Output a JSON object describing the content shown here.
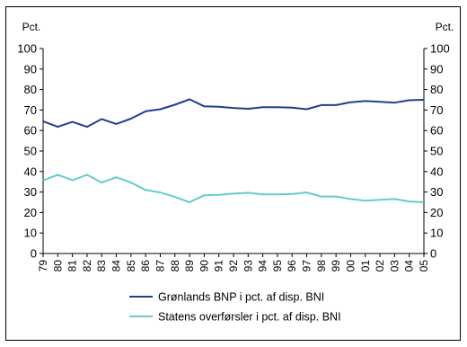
{
  "chart_data": {
    "type": "line",
    "title": "",
    "xlabel": "",
    "ylabel_left": "Pct.",
    "ylabel_right": "Pct.",
    "ylim": [
      0,
      100
    ],
    "yticks": [
      0,
      10,
      20,
      30,
      40,
      50,
      60,
      70,
      80,
      90,
      100
    ],
    "grid": false,
    "legend_position": "bottom",
    "categories": [
      "79",
      "80",
      "81",
      "82",
      "83",
      "84",
      "85",
      "86",
      "87",
      "88",
      "89",
      "90",
      "91",
      "92",
      "93",
      "94",
      "95",
      "96",
      "97",
      "98",
      "99",
      "00",
      "01",
      "02",
      "03",
      "04",
      "05"
    ],
    "series": [
      {
        "name": "Grønlands BNP i pct. af disp. BNI",
        "color": "#1f3f8f",
        "values": [
          64.5,
          61.8,
          64.2,
          61.8,
          65.6,
          63.2,
          65.8,
          69.4,
          70.4,
          72.6,
          75.2,
          71.8,
          71.6,
          71.0,
          70.6,
          71.4,
          71.4,
          71.2,
          70.4,
          72.4,
          72.4,
          73.8,
          74.4,
          74.0,
          73.6,
          74.8,
          75.0
        ]
      },
      {
        "name": "Statens overførsler i pct. af disp. BNI",
        "color": "#66cccc",
        "values": [
          35.6,
          38.4,
          35.8,
          38.4,
          34.6,
          37.2,
          34.6,
          31.0,
          29.8,
          27.6,
          25.0,
          28.4,
          28.6,
          29.2,
          29.6,
          28.8,
          28.8,
          29.0,
          29.8,
          27.8,
          27.8,
          26.6,
          25.8,
          26.2,
          26.6,
          25.4,
          25.0
        ]
      }
    ]
  }
}
